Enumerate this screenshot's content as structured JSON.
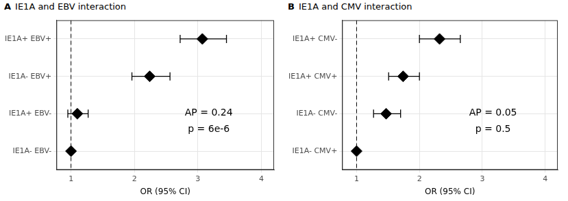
{
  "chart_data": [
    {
      "type": "scatter",
      "panel": "A",
      "title": "IE1A and EBV interaction",
      "categories": [
        "IE1A+ EBV+",
        "IE1A- EBV+",
        "IE1A+ EBV-",
        "IE1A- EBV-"
      ],
      "values": [
        3.07,
        2.24,
        1.1,
        1
      ],
      "ci_lower": [
        2.72,
        1.96,
        0.95,
        null
      ],
      "ci_upper": [
        3.45,
        2.56,
        1.27,
        null
      ],
      "xlabel": "OR (95% CI)",
      "xlim": [
        0.77,
        4.2
      ],
      "xticks": [
        1,
        2,
        3,
        4
      ],
      "reference_line": 1,
      "annotations": [
        "AP = 0.24",
        "p = 6e-6"
      ],
      "orientation": "horizontal",
      "marker": "diamond",
      "color": "#000000",
      "grid": true
    },
    {
      "type": "scatter",
      "panel": "B",
      "title": "IE1A and CMV interaction",
      "categories": [
        "IE1A+ CMV-",
        "IE1A+ CMV+",
        "IE1A- CMV-",
        "IE1A- CMV+"
      ],
      "values": [
        2.32,
        1.74,
        1.47,
        1
      ],
      "ci_lower": [
        2.0,
        1.51,
        1.27,
        null
      ],
      "ci_upper": [
        2.65,
        2.0,
        1.7,
        null
      ],
      "xlabel": "OR (95% CI)",
      "xlim": [
        0.77,
        4.2
      ],
      "xticks": [
        1,
        2,
        3,
        4
      ],
      "reference_line": 1,
      "annotations": [
        "AP = 0.05",
        "p = 0.5"
      ],
      "orientation": "horizontal",
      "marker": "diamond",
      "color": "#000000",
      "grid": true
    }
  ]
}
